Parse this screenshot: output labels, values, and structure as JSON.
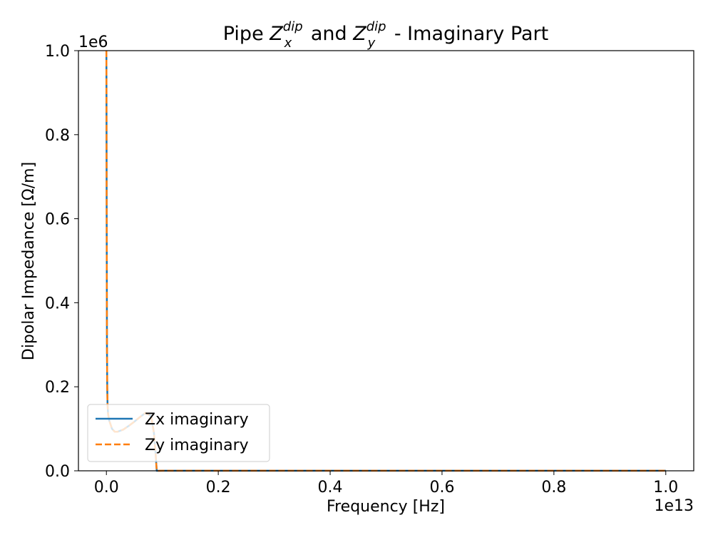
{
  "chart_data": {
    "type": "line",
    "title": {
      "prefix": "Pipe ",
      "sym1": "Z",
      "sub1": "x",
      "sup1": "dip",
      "middle": " and ",
      "sym2": "Z",
      "sub2": "y",
      "sup2": "dip",
      "suffix": " - Imaginary Part"
    },
    "xlabel": "Frequency [Hz]",
    "ylabel": "Dipolar Impedance [Ω/m]",
    "x_offset_label": "1e13",
    "y_offset_label": "1e6",
    "xlim": [
      -0.05,
      1.05
    ],
    "ylim": [
      0.0,
      1.0
    ],
    "x_unit_multiplier": 10000000000000.0,
    "y_unit_multiplier": 1000000.0,
    "xticks": [
      0.0,
      0.2,
      0.4,
      0.6,
      0.8,
      1.0
    ],
    "xtick_labels": [
      "0.0",
      "0.2",
      "0.4",
      "0.6",
      "0.8",
      "1.0"
    ],
    "yticks": [
      0.0,
      0.2,
      0.4,
      0.6,
      0.8,
      1.0
    ],
    "ytick_labels": [
      "0.0",
      "0.2",
      "0.4",
      "0.6",
      "0.8",
      "1.0"
    ],
    "grid": false,
    "legend_position": "lower-left",
    "series": [
      {
        "name": "Zx imaginary",
        "color": "#1f77b4",
        "style": "solid",
        "x": [
          0.0,
          0.0005,
          0.001,
          0.0015,
          0.002,
          0.003,
          0.005,
          0.01,
          0.015,
          0.02,
          0.03,
          0.04,
          0.05,
          0.06,
          0.07,
          0.08,
          0.085,
          0.088,
          0.09,
          0.1,
          0.2,
          0.4,
          0.6,
          0.8,
          1.0
        ],
        "y": [
          1.0,
          0.6,
          0.3,
          0.2,
          0.16,
          0.135,
          0.12,
          0.1,
          0.093,
          0.093,
          0.098,
          0.107,
          0.117,
          0.128,
          0.138,
          0.13,
          0.09,
          0.04,
          0.0,
          0.0003,
          0.0003,
          0.0003,
          0.0003,
          0.0003,
          0.0003
        ]
      },
      {
        "name": "Zy imaginary",
        "color": "#ff7f0e",
        "style": "dashed",
        "x": [
          0.0,
          0.0005,
          0.001,
          0.0015,
          0.002,
          0.003,
          0.005,
          0.01,
          0.015,
          0.02,
          0.03,
          0.04,
          0.05,
          0.06,
          0.07,
          0.08,
          0.085,
          0.088,
          0.09,
          0.1,
          0.2,
          0.4,
          0.6,
          0.8,
          1.0
        ],
        "y": [
          1.0,
          0.6,
          0.3,
          0.2,
          0.16,
          0.135,
          0.12,
          0.1,
          0.093,
          0.093,
          0.098,
          0.107,
          0.117,
          0.128,
          0.138,
          0.13,
          0.09,
          0.04,
          0.0,
          0.0003,
          0.0003,
          0.0003,
          0.0003,
          0.0003,
          0.0003
        ]
      }
    ]
  }
}
